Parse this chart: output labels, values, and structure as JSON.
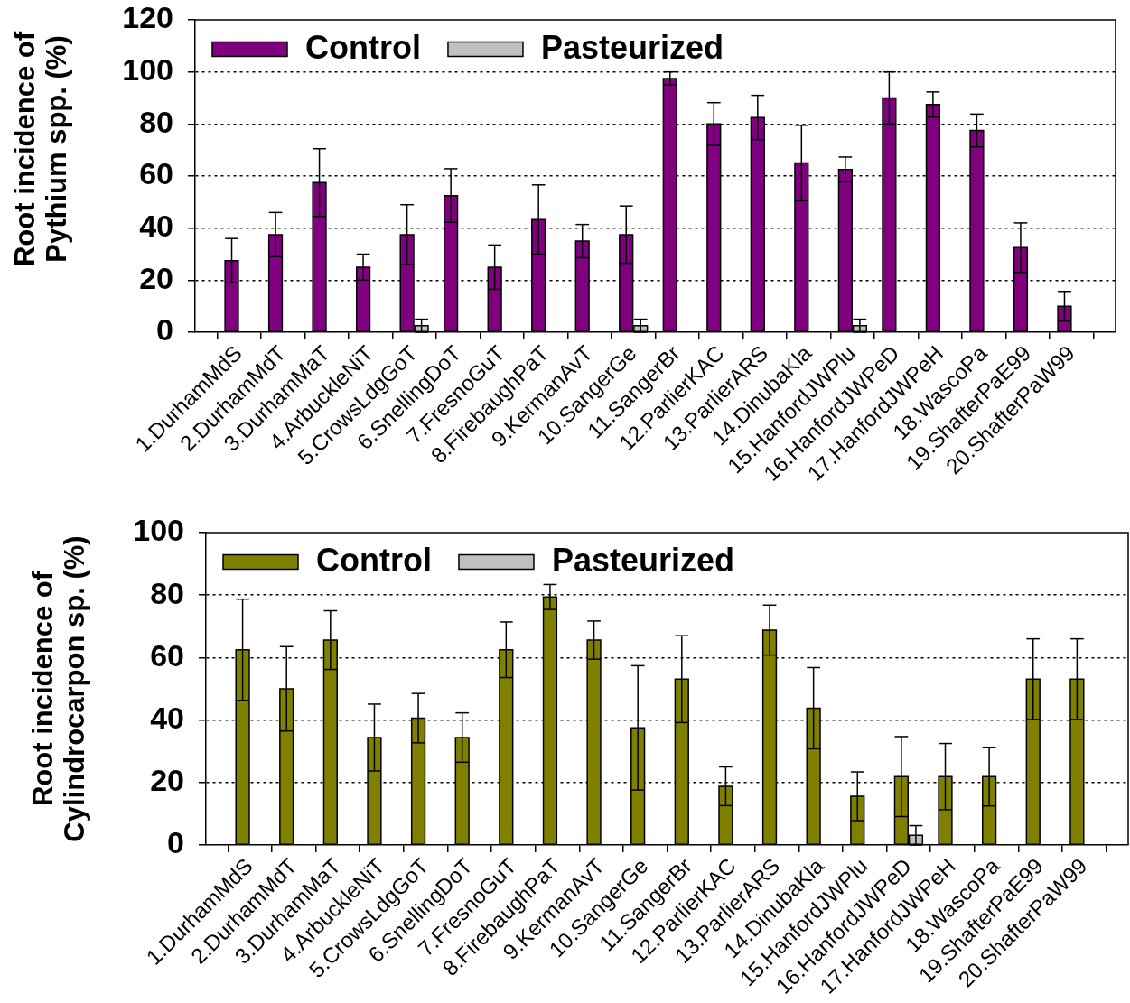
{
  "chart_data": [
    {
      "type": "bar",
      "ylabel": "Root incidence of Pythium spp. (%)",
      "categories": [
        "1.DurhamMdS",
        "2.DurhamMdT",
        "3.DurhamMaT",
        "4.ArbuckleNiT",
        "5.CrowsLdgGoT",
        "6.SnellingDoT",
        "7.FresnoGuT",
        "8.FirebaughPaT",
        "9.KermanAvT",
        "10.SangerGe",
        "11.SangerBr",
        "12.ParlierKAC",
        "13.ParlierARS",
        "14.DinubaKla",
        "15.HanfordJWPlu",
        "16.HanfordJWPeD",
        "17.HanfordJWPeH",
        "18.WascoPa",
        "19.ShafterPaE99",
        "20.ShafterPaW99"
      ],
      "series": [
        {
          "name": "Control",
          "color": "#800080",
          "values": [
            27.5,
            37.5,
            57.5,
            25,
            37.5,
            52.5,
            25,
            43.3,
            35,
            37.5,
            97.5,
            80,
            82.5,
            65,
            62.5,
            90,
            87.5,
            77.5,
            32.5,
            10
          ],
          "errors": [
            8.5,
            8.5,
            13,
            5,
            11.5,
            10.3,
            8.5,
            13.3,
            6.4,
            11,
            2.5,
            8.2,
            8.5,
            14.5,
            4.8,
            10,
            4.8,
            6.3,
            9.5,
            5.7
          ]
        },
        {
          "name": "Pasteurized",
          "color": "#c0c0c0",
          "values": [
            0,
            0,
            0,
            0,
            2.5,
            0,
            0,
            0,
            0,
            2.5,
            0,
            0,
            0,
            0,
            2.5,
            0,
            0,
            0,
            0,
            0
          ],
          "errors": [
            null,
            null,
            null,
            null,
            2.5,
            null,
            null,
            null,
            null,
            2.5,
            null,
            null,
            null,
            null,
            2.5,
            null,
            null,
            null,
            null,
            null
          ]
        }
      ],
      "ylim": [
        0,
        120
      ],
      "yticks": [
        0,
        20,
        40,
        60,
        80,
        100,
        120
      ],
      "grid": "y",
      "legend": "top left"
    },
    {
      "type": "bar",
      "ylabel": "Root incidence of Cylindrocarpon sp. (%)",
      "categories": [
        "1.DurhamMdS",
        "2.DurhamMdT",
        "3.DurhamMaT",
        "4.ArbuckleNiT",
        "5.CrowsLdgGoT",
        "6.SnellingDoT",
        "7.FresnoGuT",
        "8.FirebaughPaT",
        "9.KermanAvT",
        "10.SangerGe",
        "11.SangerBr",
        "12.ParlierKAC",
        "13.ParlierARS",
        "14.DinubaKla",
        "15.HanfordJWPlu",
        "16.HanfordJWPeD",
        "17.HanfordJWPeH",
        "18.WascoPa",
        "19.ShafterPaE99",
        "20.ShafterPaW99"
      ],
      "series": [
        {
          "name": "Control",
          "color": "#808000",
          "values": [
            62.5,
            50,
            65.6,
            34.4,
            40.6,
            34.4,
            62.5,
            79.4,
            65.6,
            37.5,
            53.1,
            18.8,
            68.8,
            43.8,
            15.6,
            21.9,
            21.9,
            21.9,
            53.1,
            53.1
          ],
          "errors": [
            16.2,
            13.5,
            9.4,
            10.7,
            7.9,
            7.9,
            8.9,
            4,
            6.1,
            19.9,
            13.9,
            6.2,
            8,
            13,
            7.8,
            12.8,
            10.6,
            9.4,
            12.9,
            12.9
          ]
        },
        {
          "name": "Pasteurized",
          "color": "#c0c0c0",
          "values": [
            0,
            0,
            0,
            0,
            0,
            0,
            0,
            0,
            0,
            0,
            0,
            0,
            0,
            0,
            0,
            3.1,
            0,
            0,
            0,
            0
          ],
          "errors": [
            null,
            null,
            null,
            null,
            null,
            null,
            null,
            null,
            null,
            null,
            null,
            null,
            null,
            null,
            null,
            3.1,
            null,
            null,
            null,
            null
          ]
        }
      ],
      "ylim": [
        0,
        100
      ],
      "yticks": [
        0,
        20,
        40,
        60,
        80,
        100
      ],
      "grid": "y",
      "legend": "top left"
    }
  ]
}
